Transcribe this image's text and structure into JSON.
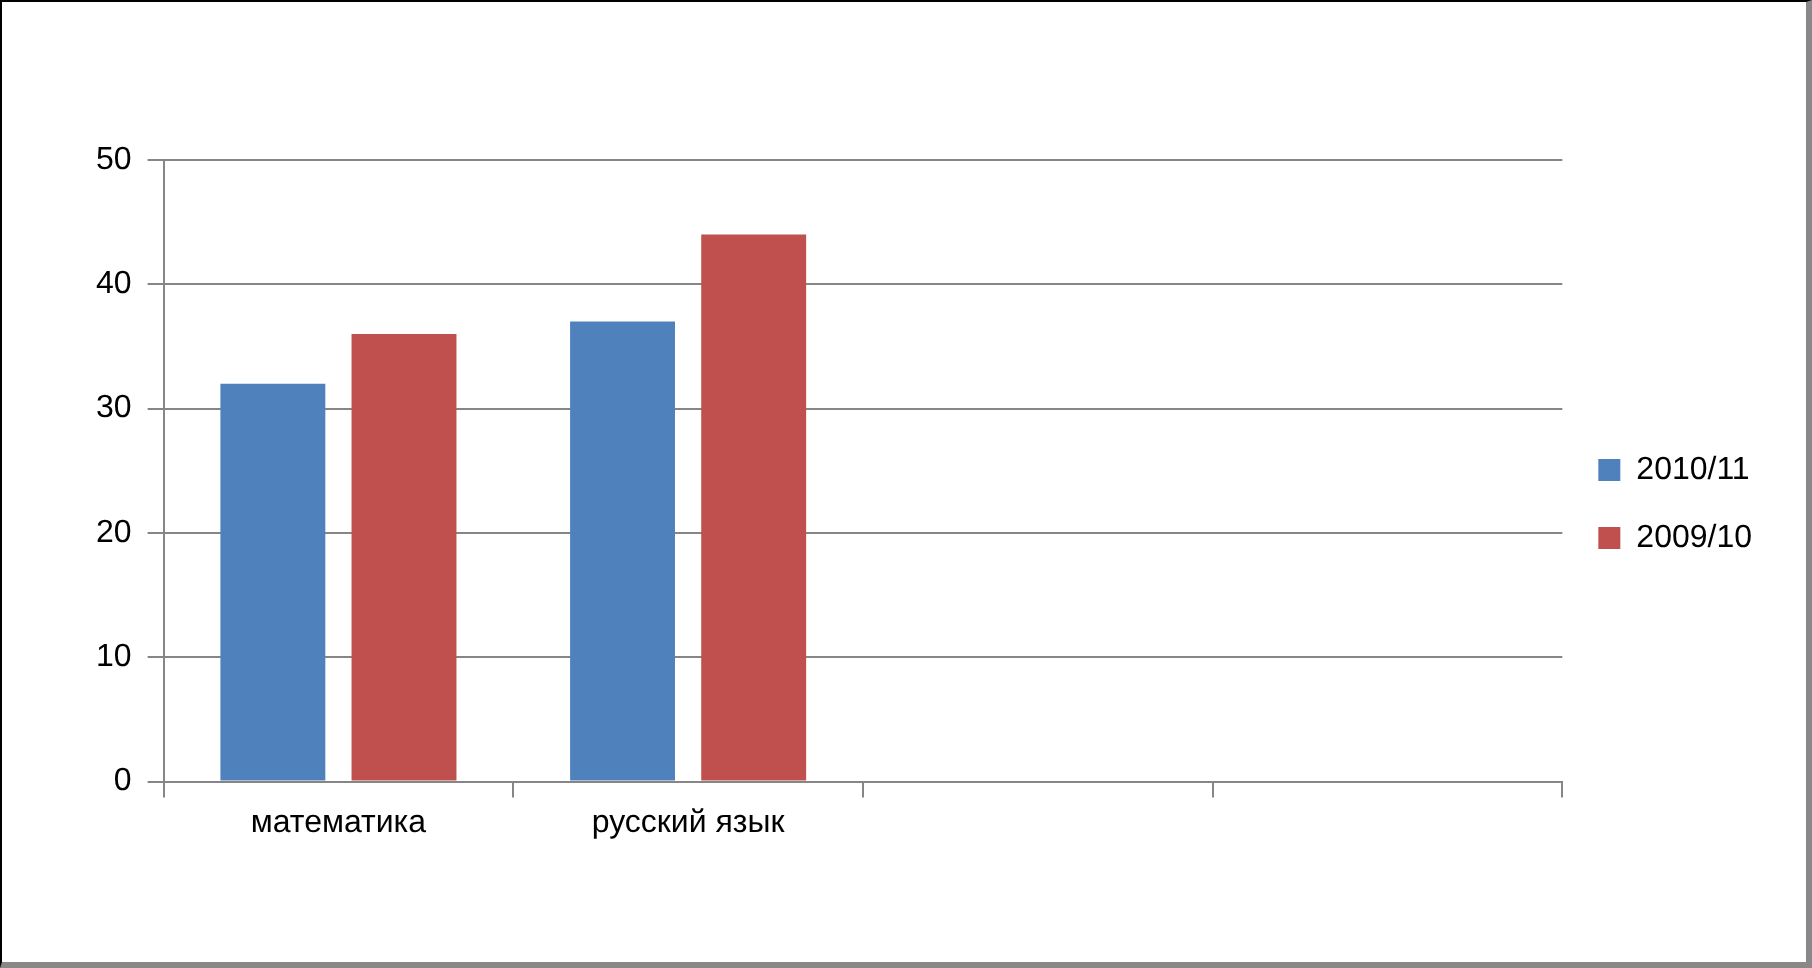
{
  "chart_data": {
    "type": "bar",
    "categories": [
      "математика",
      "русский язык",
      null,
      null
    ],
    "series": [
      {
        "name": "2010/11",
        "color": "#4f81bd",
        "values": [
          32,
          37,
          null,
          null
        ]
      },
      {
        "name": "2009/10",
        "color": "#c0504d",
        "values": [
          36,
          44,
          null,
          null
        ]
      }
    ],
    "ylim": [
      0,
      50
    ],
    "yticks": [
      0,
      10,
      20,
      30,
      40,
      50
    ],
    "grid": "y",
    "legend": "right"
  }
}
